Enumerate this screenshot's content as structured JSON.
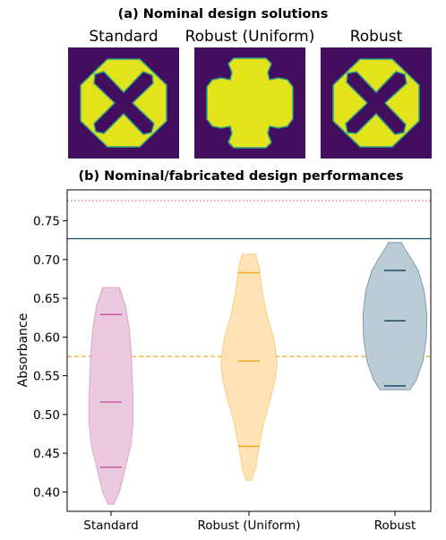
{
  "panel_a": {
    "title": "(a) Nominal design solutions",
    "designs": [
      {
        "label": "Standard",
        "shape": "octagon-x"
      },
      {
        "label": "Robust (Uniform)",
        "shape": "cross-blob"
      },
      {
        "label": "Robust",
        "shape": "octagon-x"
      }
    ],
    "colors": {
      "background": "#440e5e",
      "material": "#e2e31a",
      "edge": "#2a9e8a"
    }
  },
  "chart_data": {
    "type": "violin",
    "title": "(b) Nominal/fabricated design performances",
    "ylabel": "Absorbance",
    "xlabel": "",
    "categories": [
      "Standard",
      "Robust (Uniform)",
      "Robust"
    ],
    "ylim": [
      0.375,
      0.79
    ],
    "yticks": [
      0.4,
      0.45,
      0.5,
      0.55,
      0.6,
      0.65,
      0.7,
      0.75
    ],
    "ytick_labels": [
      "0.40",
      "0.45",
      "0.50",
      "0.55",
      "0.60",
      "0.65",
      "0.70",
      "0.75"
    ],
    "series": [
      {
        "category": "Standard",
        "color": "#c45aa0",
        "fill": "#e9c3dc",
        "min": 0.384,
        "max": 0.664,
        "quantiles": [
          0.432,
          0.516,
          0.629
        ],
        "profile": [
          [
            0.384,
            0.3
          ],
          [
            0.4,
            0.9
          ],
          [
            0.43,
            1.5
          ],
          [
            0.46,
            2.1
          ],
          [
            0.49,
            2.35
          ],
          [
            0.52,
            2.35
          ],
          [
            0.55,
            2.25
          ],
          [
            0.58,
            2.15
          ],
          [
            0.61,
            1.95
          ],
          [
            0.64,
            1.55
          ],
          [
            0.664,
            0.9
          ]
        ]
      },
      {
        "category": "Robust (Uniform)",
        "color": "#f5a623",
        "fill": "#fde0ae",
        "min": 0.415,
        "max": 0.707,
        "quantiles": [
          0.459,
          0.569,
          0.683
        ],
        "profile": [
          [
            0.415,
            0.3
          ],
          [
            0.43,
            0.7
          ],
          [
            0.46,
            1.1
          ],
          [
            0.49,
            1.6
          ],
          [
            0.52,
            2.3
          ],
          [
            0.545,
            2.8
          ],
          [
            0.57,
            3.0
          ],
          [
            0.6,
            2.6
          ],
          [
            0.63,
            1.9
          ],
          [
            0.66,
            1.4
          ],
          [
            0.69,
            1.1
          ],
          [
            0.707,
            0.7
          ]
        ]
      },
      {
        "category": "Robust",
        "color": "#1e4a5f",
        "fill": "#b3c6d1",
        "min": 0.532,
        "max": 0.722,
        "quantiles": [
          0.537,
          0.621,
          0.686
        ],
        "profile": [
          [
            0.532,
            1.6
          ],
          [
            0.545,
            2.3
          ],
          [
            0.57,
            3.0
          ],
          [
            0.6,
            3.35
          ],
          [
            0.63,
            3.4
          ],
          [
            0.66,
            3.1
          ],
          [
            0.685,
            2.5
          ],
          [
            0.7,
            1.8
          ],
          [
            0.715,
            1.0
          ],
          [
            0.722,
            0.7
          ]
        ]
      }
    ],
    "reference_lines": [
      {
        "y": 0.776,
        "style": "dotted",
        "color": "#e36a84"
      },
      {
        "y": 0.727,
        "style": "solid",
        "color": "#1e4a5f"
      },
      {
        "y": 0.575,
        "style": "dashed",
        "color": "#f5a623"
      }
    ],
    "grid": false
  }
}
